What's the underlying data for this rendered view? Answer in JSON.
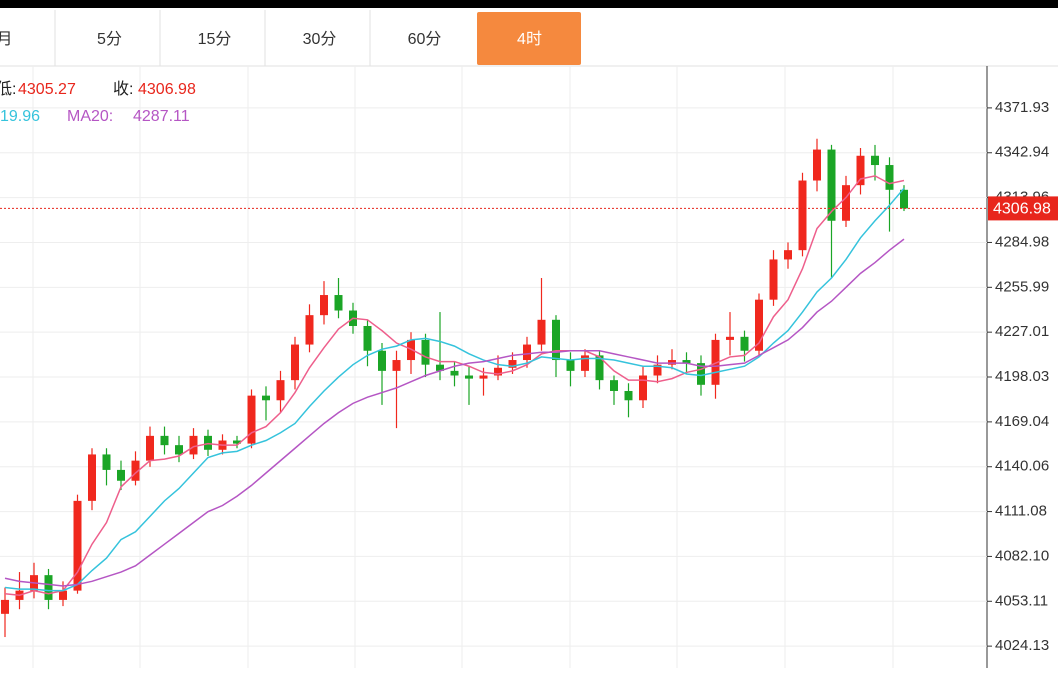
{
  "tabs": {
    "items": [
      "月",
      "5分",
      "15分",
      "30分",
      "60分",
      "4时"
    ],
    "active": 5
  },
  "header": {
    "low_label": "低:",
    "low_value": "4305.27",
    "close_label": "收:",
    "ma10_fragment": "19.96"
  },
  "chart_data": {
    "type": "candlestick",
    "up_color": "#f0281e",
    "down_color": "#1ba526",
    "open": [
      4045,
      4054,
      4060,
      4070,
      4054,
      4060,
      4118,
      4148,
      4138,
      4131,
      4144,
      4160,
      4154,
      4148,
      4160,
      4151,
      4157,
      4155,
      4186,
      4183,
      4196,
      4219,
      4238,
      4251,
      4241,
      4231,
      4215,
      4202,
      4209,
      4222,
      4206,
      4202,
      4199,
      4197,
      4199,
      4204,
      4209,
      4219,
      4235,
      4209,
      4202,
      4212,
      4196,
      4189,
      4183,
      4199,
      4206,
      4209,
      4207,
      4193,
      4222,
      4224,
      4215,
      4248,
      4274,
      4280,
      4325,
      4345,
      4299,
      4322,
      4341,
      4335,
      4319
    ],
    "high": [
      4062,
      4072,
      4078,
      4074,
      4066,
      4122,
      4152,
      4152,
      4144,
      4150,
      4166,
      4166,
      4160,
      4165,
      4164,
      4161,
      4160,
      4190,
      4192,
      4202,
      4224,
      4245,
      4260,
      4262,
      4246,
      4235,
      4220,
      4215,
      4227,
      4226,
      4240,
      4208,
      4205,
      4204,
      4212,
      4214,
      4224,
      4262,
      4238,
      4214,
      4216,
      4215,
      4199,
      4194,
      4205,
      4212,
      4216,
      4214,
      4212,
      4226,
      4240,
      4228,
      4252,
      4280,
      4285,
      4330,
      4352,
      4348,
      4328,
      4346,
      4348,
      4340,
      4322
    ],
    "low": [
      4030,
      4048,
      4055,
      4048,
      4050,
      4058,
      4112,
      4128,
      4125,
      4128,
      4140,
      4148,
      4143,
      4145,
      4147,
      4148,
      4152,
      4152,
      4170,
      4175,
      4190,
      4214,
      4232,
      4236,
      4226,
      4205,
      4180,
      4165,
      4200,
      4198,
      4196,
      4192,
      4180,
      4186,
      4196,
      4200,
      4204,
      4215,
      4198,
      4192,
      4198,
      4190,
      4180,
      4172,
      4178,
      4194,
      4203,
      4200,
      4186,
      4184,
      4212,
      4208,
      4212,
      4244,
      4268,
      4276,
      4318,
      4262,
      4295,
      4316,
      4325,
      4292,
      4305.27
    ],
    "close": [
      4054,
      4060,
      4070,
      4054,
      4060,
      4118,
      4148,
      4138,
      4131,
      4144,
      4160,
      4154,
      4148,
      4160,
      4151,
      4157,
      4155,
      4186,
      4183,
      4196,
      4219,
      4238,
      4251,
      4241,
      4231,
      4215,
      4202,
      4209,
      4222,
      4206,
      4202,
      4199,
      4197,
      4199,
      4204,
      4209,
      4219,
      4235,
      4209,
      4202,
      4212,
      4196,
      4189,
      4183,
      4199,
      4206,
      4209,
      4207,
      4193,
      4222,
      4224,
      4215,
      4248,
      4274,
      4280,
      4325,
      4345,
      4299,
      4322,
      4341,
      4335,
      4319,
      4306.98
    ],
    "close_labels": {
      "62": "4306.98"
    },
    "series": [
      {
        "color": "#ee5f8c",
        "values": [
          4058,
          4057,
          4060,
          4058,
          4060,
          4072,
          4090,
          4104,
          4127,
          4136,
          4144,
          4145,
          4147,
          4153,
          4155,
          4154,
          4154,
          4162,
          4166,
          4175,
          4188,
          4204,
          4217,
          4229,
          4236,
          4235,
          4228,
          4220,
          4216,
          4211,
          4208,
          4208,
          4205,
          4201,
          4200,
          4202,
          4206,
          4213,
          4215,
          4215,
          4215,
          4211,
          4202,
          4196,
          4196,
          4195,
          4197,
          4201,
          4203,
          4207,
          4211,
          4212,
          4220,
          4237,
          4248,
          4268,
          4294,
          4305,
          4314,
          4326,
          4328,
          4323,
          4325
        ]
      },
      {
        "color": "#35c3dc",
        "values": [
          4062,
          4061,
          4061,
          4060,
          4060,
          4064,
          4073,
          4081,
          4093,
          4098,
          4108,
          4118,
          4126,
          4136,
          4146,
          4149,
          4150,
          4154,
          4157,
          4162,
          4168,
          4179,
          4189,
          4198,
          4206,
          4212,
          4216,
          4218,
          4222,
          4223,
          4221,
          4218,
          4213,
          4209,
          4206,
          4205,
          4207,
          4211,
          4210,
          4209,
          4210,
          4210,
          4209,
          4207,
          4205,
          4205,
          4204,
          4200,
          4199,
          4201,
          4203,
          4205,
          4211,
          4220,
          4228,
          4240,
          4253,
          4262,
          4274,
          4288,
          4299,
          4309,
          4319.96
        ]
      },
      {
        "name": "MA20:",
        "color": "#b556c4",
        "value_label": "4287.11",
        "values": [
          4068,
          4066,
          4065,
          4064,
          4063,
          4064,
          4066,
          4069,
          4072,
          4076,
          4083,
          4090,
          4097,
          4104,
          4111,
          4115,
          4121,
          4128,
          4136,
          4144,
          4152,
          4160,
          4168,
          4175,
          4181,
          4185,
          4188,
          4191,
          4195,
          4199,
          4202,
          4205,
          4207,
          4208,
          4210,
          4212,
          4213,
          4214,
          4214,
          4215,
          4215,
          4215,
          4213,
          4211,
          4209,
          4207,
          4207,
          4207,
          4205,
          4205,
          4206,
          4207,
          4212,
          4217,
          4222,
          4230,
          4240,
          4247,
          4256,
          4265,
          4272,
          4280,
          4287.11
        ]
      }
    ],
    "ylim": [
      4010,
      4399
    ],
    "yticks": [
      4024.13,
      4053.11,
      {
        "value": 4082.1,
        "label": "4082.10"
      },
      4111.08,
      4140.06,
      4169.04,
      4198.03,
      4227.01,
      4255.99,
      4284.98,
      4313.96,
      4342.94,
      4371.93
    ],
    "grid": true
  }
}
